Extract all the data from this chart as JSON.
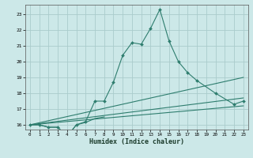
{
  "xlabel": "Humidex (Indice chaleur)",
  "bg_color": "#cce8e8",
  "grid_color": "#aacccc",
  "line_color": "#2e7d6e",
  "xlim": [
    -0.5,
    23.5
  ],
  "ylim": [
    15.7,
    23.6
  ],
  "yticks": [
    16,
    17,
    18,
    19,
    20,
    21,
    22,
    23
  ],
  "xticks": [
    0,
    1,
    2,
    3,
    4,
    5,
    6,
    7,
    8,
    9,
    10,
    11,
    12,
    13,
    14,
    15,
    16,
    17,
    18,
    19,
    20,
    21,
    22,
    23
  ],
  "main_line": {
    "x": [
      0,
      1,
      2,
      3,
      4,
      5,
      6,
      7,
      8,
      9,
      10,
      11,
      12,
      13,
      14,
      15,
      16,
      17,
      18,
      20,
      22,
      23
    ],
    "y": [
      16,
      16,
      15.85,
      15.85,
      15.25,
      16.0,
      16.2,
      17.5,
      17.5,
      18.7,
      20.4,
      21.2,
      21.1,
      22.1,
      23.3,
      21.3,
      20.0,
      19.3,
      18.8,
      18.0,
      17.3,
      17.5
    ]
  },
  "small_segments": [
    {
      "x": [
        0,
        1,
        2,
        3,
        4,
        5,
        6,
        7,
        8
      ],
      "y": [
        16,
        16,
        15.85,
        15.85,
        15.25,
        16.0,
        16.15,
        16.4,
        16.5
      ]
    },
    {
      "x": [
        0,
        23
      ],
      "y": [
        16.0,
        19.0
      ]
    },
    {
      "x": [
        0,
        23
      ],
      "y": [
        16.0,
        17.7
      ]
    },
    {
      "x": [
        0,
        23
      ],
      "y": [
        16.0,
        17.2
      ]
    }
  ]
}
